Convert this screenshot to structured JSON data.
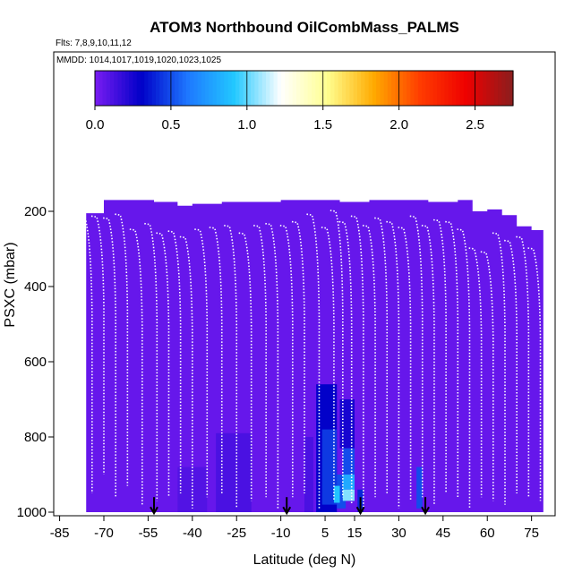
{
  "chart_data": {
    "type": "heatmap",
    "title": "ATOM3 Northbound OilCombMass_PALMS",
    "subtitle_flights": "Flts: 7,8,9,10,11,12",
    "subtitle_dates": "MMDD: 1014,1017,1019,1020,1023,1025",
    "xlabel": "Latitude (deg N)",
    "ylabel": "PSXC (mbar)",
    "xlim": [
      -87,
      83
    ],
    "ylim": [
      1000,
      100
    ],
    "x_ticks": [
      -85,
      -70,
      -55,
      -40,
      -25,
      -10,
      5,
      15,
      30,
      45,
      60,
      75
    ],
    "x_tick_labels": [
      "-85",
      "-70",
      "-55",
      "-40",
      "-25",
      "-10",
      "5",
      "15",
      "30",
      "45",
      "60",
      "75"
    ],
    "y_ticks": [
      200,
      400,
      600,
      800,
      1000
    ],
    "y_tick_labels": [
      "200",
      "400",
      "600",
      "800",
      "1000"
    ],
    "colorbar": {
      "range": [
        0,
        2.75
      ],
      "ticks": [
        0.0,
        0.5,
        1.0,
        1.5,
        2.0,
        2.5
      ],
      "tick_labels": [
        "0.0",
        "0.5",
        "1.0",
        "1.5",
        "2.0",
        "2.5"
      ],
      "colors": [
        "#7a1cf2",
        "#0000c8",
        "#1e78ff",
        "#22c8ff",
        "#ffffff",
        "#ffff90",
        "#ffaa00",
        "#ff3c00",
        "#ee0000",
        "#8a1e1e"
      ]
    },
    "background_value": 0.05,
    "domain": {
      "lat_min": -76,
      "lat_max": 79,
      "p_top": 170,
      "p_bottom": 1000
    },
    "top_profile": [
      [
        -76,
        205
      ],
      [
        -72,
        205
      ],
      [
        -70,
        170
      ],
      [
        -60,
        170
      ],
      [
        -53,
        175
      ],
      [
        -45,
        185
      ],
      [
        -40,
        180
      ],
      [
        -30,
        175
      ],
      [
        -20,
        175
      ],
      [
        -10,
        170
      ],
      [
        0,
        170
      ],
      [
        10,
        175
      ],
      [
        20,
        170
      ],
      [
        30,
        170
      ],
      [
        40,
        175
      ],
      [
        50,
        170
      ],
      [
        55,
        200
      ],
      [
        60,
        195
      ],
      [
        65,
        210
      ],
      [
        70,
        240
      ],
      [
        75,
        250
      ],
      [
        79,
        260
      ]
    ],
    "anomalies": [
      {
        "lat1": -32,
        "lat2": -20,
        "p1": 790,
        "p2": 1000,
        "value": 0.12
      },
      {
        "lat1": -45,
        "lat2": -35,
        "p1": 880,
        "p2": 1000,
        "value": 0.1
      },
      {
        "lat1": 2,
        "lat2": 9,
        "p1": 660,
        "p2": 1000,
        "value": 0.3
      },
      {
        "lat1": 4,
        "lat2": 9,
        "p1": 780,
        "p2": 980,
        "value": 0.45
      },
      {
        "lat1": 9,
        "lat2": 12,
        "p1": 900,
        "p2": 990,
        "value": 0.5
      },
      {
        "lat1": 10,
        "lat2": 15,
        "p1": 700,
        "p2": 830,
        "value": 0.25
      },
      {
        "lat1": 11,
        "lat2": 15,
        "p1": 830,
        "p2": 900,
        "value": 0.5
      },
      {
        "lat1": 11,
        "lat2": 15,
        "p1": 900,
        "p2": 940,
        "value": 0.8
      },
      {
        "lat1": 11,
        "lat2": 15,
        "p1": 940,
        "p2": 970,
        "value": 1.05
      },
      {
        "lat1": 8,
        "lat2": 10,
        "p1": 930,
        "p2": 975,
        "value": 0.9
      },
      {
        "lat1": 16,
        "lat2": 18,
        "p1": 940,
        "p2": 1000,
        "value": 0.4
      },
      {
        "lat1": 36,
        "lat2": 38,
        "p1": 880,
        "p2": 990,
        "value": 0.5
      },
      {
        "lat1": -2,
        "lat2": 1,
        "p1": 800,
        "p2": 1000,
        "value": 0.12
      }
    ],
    "markers": {
      "symbol": "down-arrow",
      "latitudes": [
        -53,
        -8,
        17,
        39
      ],
      "p_start": 960,
      "p_end": 1003
    },
    "profiles": [
      [
        -74,
        215,
        950
      ],
      [
        -70,
        215,
        900
      ],
      [
        -66,
        220,
        960
      ],
      [
        -62,
        210,
        930
      ],
      [
        -57,
        250,
        980
      ],
      [
        -52,
        235,
        970
      ],
      [
        -48,
        260,
        960
      ],
      [
        -44,
        255,
        950
      ],
      [
        -40,
        270,
        990
      ],
      [
        -35,
        250,
        960
      ],
      [
        -30,
        245,
        950
      ],
      [
        -25,
        240,
        990
      ],
      [
        -20,
        260,
        970
      ],
      [
        -15,
        240,
        960
      ],
      [
        -11,
        235,
        990
      ],
      [
        -6,
        240,
        960
      ],
      [
        -2,
        230,
        950
      ],
      [
        3,
        210,
        990
      ],
      [
        8,
        245,
        970
      ],
      [
        11,
        200,
        960
      ],
      [
        14,
        230,
        980
      ],
      [
        18,
        215,
        990
      ],
      [
        22,
        240,
        960
      ],
      [
        26,
        220,
        950
      ],
      [
        30,
        230,
        990
      ],
      [
        34,
        245,
        970
      ],
      [
        38,
        215,
        960
      ],
      [
        42,
        240,
        980
      ],
      [
        46,
        225,
        950
      ],
      [
        50,
        230,
        960
      ],
      [
        54,
        250,
        990
      ],
      [
        58,
        300,
        960
      ],
      [
        62,
        310,
        970
      ],
      [
        66,
        260,
        980
      ],
      [
        70,
        280,
        950
      ],
      [
        74,
        270,
        960
      ],
      [
        78,
        300,
        970
      ]
    ]
  }
}
